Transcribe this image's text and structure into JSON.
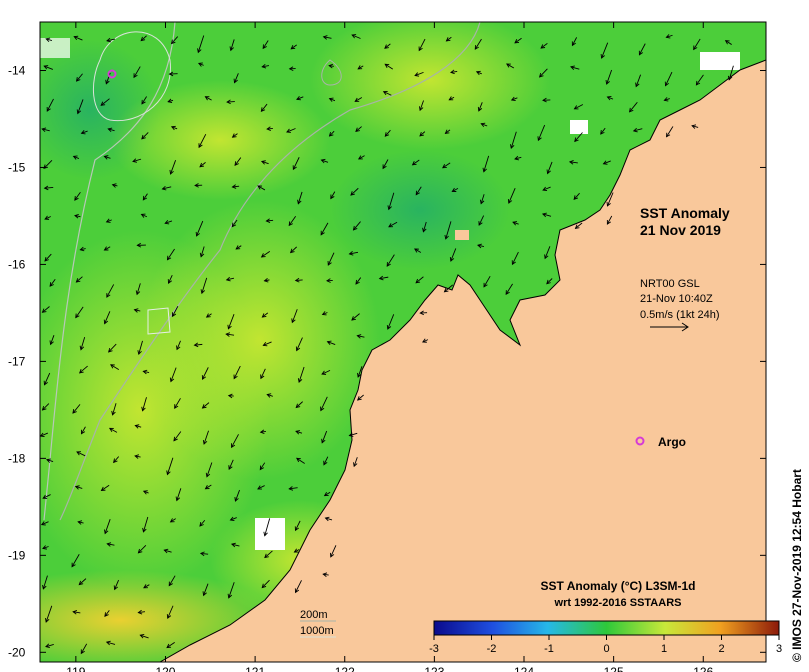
{
  "map": {
    "title_line1": "SST Anomaly",
    "title_line2": "21 Nov 2019",
    "wind": {
      "source": "NRT00 GSL",
      "time": "21-Nov 10:40Z",
      "scale_label": "0.5m/s (1kt 24h)"
    },
    "argo_label": "Argo",
    "depth_contours": [
      "200m",
      "1000m"
    ],
    "credit": "© IMOS 27-Nov-2019 12:54 Hobart",
    "colorbar": {
      "title": "SST Anomaly (°C) L3SM-1d",
      "subtitle": "wrt 1992-2016 SSTAARS",
      "ticks": [
        "-3",
        "-2",
        "-1",
        "0",
        "1",
        "2",
        "3"
      ],
      "range": [
        -3,
        3
      ]
    },
    "axes": {
      "lon_ticks": [
        "119",
        "120",
        "121",
        "122",
        "123",
        "124",
        "125",
        "126"
      ],
      "lat_ticks": [
        "-14",
        "-15",
        "-16",
        "-17",
        "-18",
        "-19",
        "-20"
      ],
      "lon_range": [
        118.6,
        126.7
      ],
      "lat_range": [
        -20.1,
        -13.5
      ]
    },
    "colors": {
      "land": "#f9c89b",
      "sea_base": "#4cce3a",
      "anomaly_warm": "#b6e62e",
      "argo": "#d63ad6"
    }
  }
}
